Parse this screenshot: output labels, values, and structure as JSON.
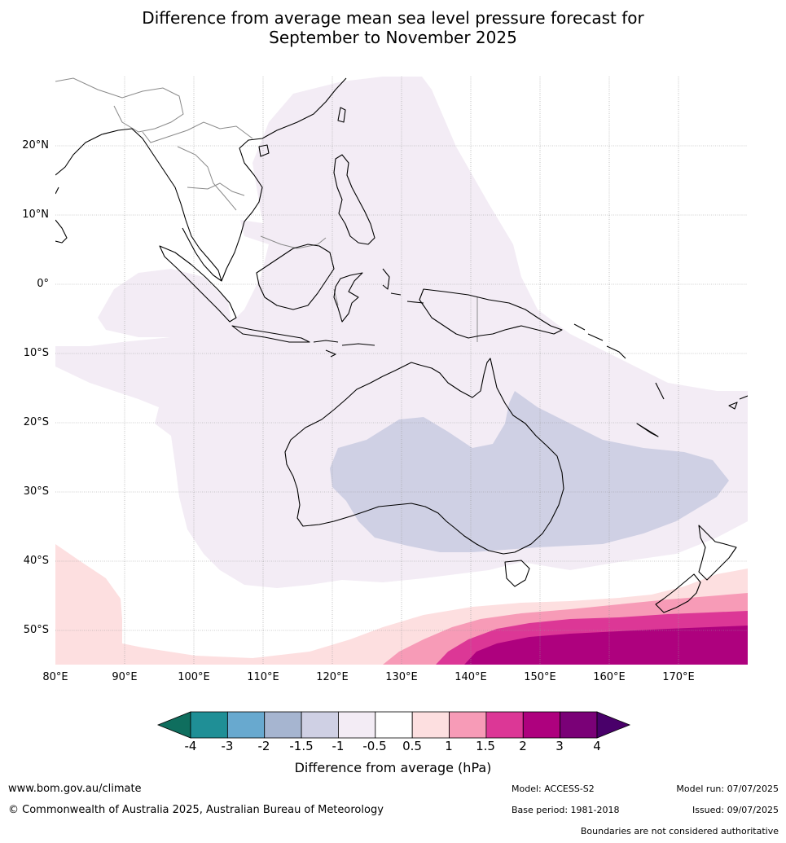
{
  "title": {
    "line1": "Difference from average mean sea level pressure forecast for",
    "line2": "September to November 2025"
  },
  "map": {
    "lat_labels": [
      "20°N",
      "10°N",
      "0°",
      "10°S",
      "20°S",
      "30°S",
      "40°S",
      "50°S"
    ],
    "lon_labels": [
      "80°E",
      "90°E",
      "100°E",
      "110°E",
      "120°E",
      "130°E",
      "140°E",
      "150°E",
      "160°E",
      "170°E"
    ],
    "features": [
      "graticule",
      "coastlines",
      "country-borders",
      "pressure-anomaly-shading"
    ],
    "anomaly_colors": {
      "neg_0_5_to_1": "#f3ecf5",
      "neg_1_to_1_5": "#cfd0e4",
      "pos_0_5_to_1": "#fddfe0",
      "pos_1_to_1_5": "#f79bb7",
      "pos_1_5_to_2": "#dc3796",
      "pos_2_to_3": "#ae017e"
    }
  },
  "colorbar": {
    "ticks": [
      "-4",
      "-3",
      "-2",
      "-1.5",
      "-1",
      "-0.5",
      "0.5",
      "1",
      "1.5",
      "2",
      "3",
      "4"
    ],
    "colors": [
      "#0f6e5e",
      "#1f8f96",
      "#68a9cf",
      "#a6b5d0",
      "#cfd0e4",
      "#f3ecf5",
      "#ffffff",
      "#fddfe0",
      "#f79bb7",
      "#dc3796",
      "#ae017e",
      "#7a0177",
      "#49006a"
    ],
    "label": "Difference from average (hPa)"
  },
  "footer": {
    "website": "www.bom.gov.au/climate",
    "copyright": "© Commonwealth of Australia 2025, Australian Bureau of Meteorology",
    "model": "Model: ACCESS-S2",
    "base_period": "Base period: 1981-2018",
    "model_run": "Model run: 07/07/2025",
    "issued": "Issued: 09/07/2025",
    "disclaimer": "Boundaries are not considered authoritative"
  }
}
